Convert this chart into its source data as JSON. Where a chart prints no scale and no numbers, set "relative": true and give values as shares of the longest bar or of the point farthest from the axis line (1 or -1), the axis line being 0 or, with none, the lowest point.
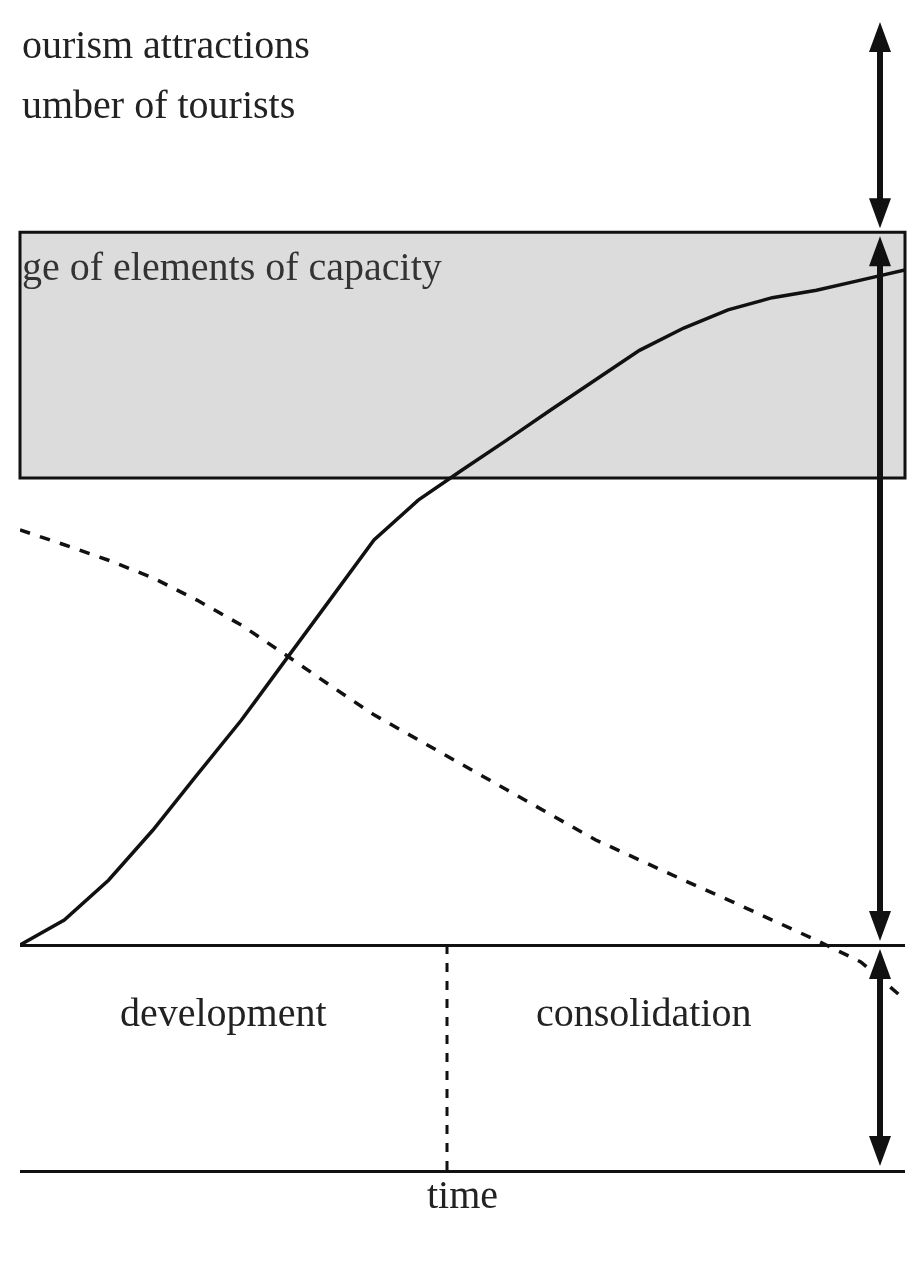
{
  "chart_data": {
    "type": "line",
    "relative": true,
    "xlabel": "time",
    "marker": "none",
    "categories": [
      null,
      null,
      null,
      null,
      null,
      null,
      null,
      null,
      null,
      null,
      null,
      null,
      null,
      null,
      null,
      null,
      null,
      null,
      null,
      null,
      null
    ],
    "series": [
      {
        "color": "#111111",
        "line_style": "solid",
        "values": [
          0,
          0.037,
          0.096,
          0.17,
          0.252,
          0.333,
          0.422,
          0.511,
          0.6,
          0.659,
          0.704,
          0.748,
          0.793,
          0.837,
          0.881,
          0.914,
          0.941,
          0.959,
          0.97,
          0.985,
          1
        ]
      },
      {
        "color": "#111111",
        "line_style": "dashed",
        "values": [
          0.615,
          0.593,
          0.57,
          0.544,
          0.511,
          0.474,
          0.43,
          0.385,
          0.341,
          0.304,
          0.267,
          0.23,
          0.193,
          0.156,
          0.126,
          0.096,
          0.067,
          0.037,
          0.007,
          -0.025,
          -0.081
        ]
      }
    ],
    "bands": [
      {
        "axis": "y",
        "from": 0.692,
        "to": 1.056,
        "label": "ge of elements of capacity",
        "color": "#dcdcdc"
      }
    ],
    "annotations": [
      "ourism attractions",
      "umber of tourists",
      "development",
      "consolidation"
    ]
  }
}
